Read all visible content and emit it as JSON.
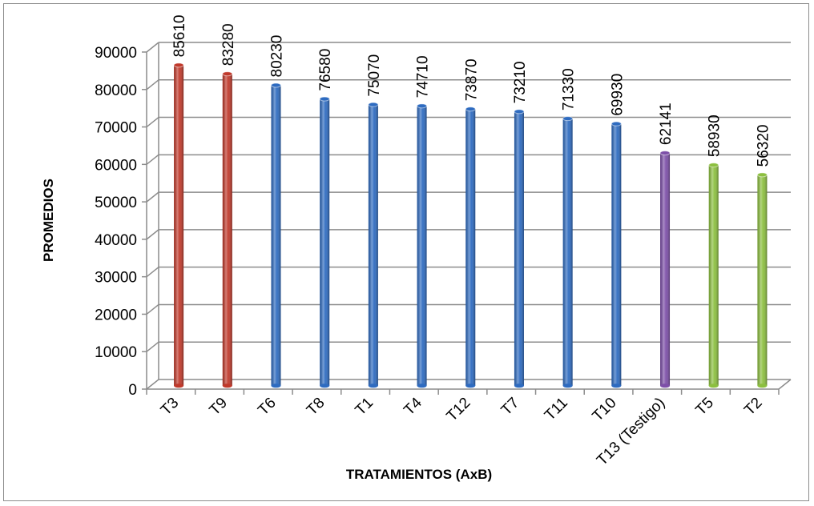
{
  "chart_data": {
    "type": "bar",
    "categories": [
      "T3",
      "T9",
      "T6",
      "T8",
      "T1",
      "T4",
      "T12",
      "T7",
      "T11",
      "T10",
      "T13 (Testigo)",
      "T5",
      "T2"
    ],
    "values": [
      85610,
      83280,
      80230,
      76580,
      75070,
      74710,
      73870,
      73210,
      71330,
      69930,
      62141,
      58930,
      56320
    ],
    "data_labels": [
      "85610",
      "83280",
      "80230",
      "76580",
      "75070",
      "74710",
      "73870",
      "73210",
      "71330",
      "69930",
      "62141",
      "58930",
      "56320"
    ],
    "bar_colors": [
      "#c0392b",
      "#c0392b",
      "#2e6bc0",
      "#2e6bc0",
      "#2e6bc0",
      "#2e6bc0",
      "#2e6bc0",
      "#2e6bc0",
      "#2e6bc0",
      "#2e6bc0",
      "#7d4fa8",
      "#8cbf3f",
      "#8cbf3f"
    ],
    "xlabel": "TRATAMIENTOS (AxB)",
    "ylabel": "PROMEDIOS",
    "ylim": [
      0,
      90000
    ],
    "yticks": [
      "0",
      "10000",
      "20000",
      "30000",
      "40000",
      "50000",
      "60000",
      "70000",
      "80000",
      "90000"
    ],
    "grid": true,
    "style": "3d-cylinder"
  }
}
